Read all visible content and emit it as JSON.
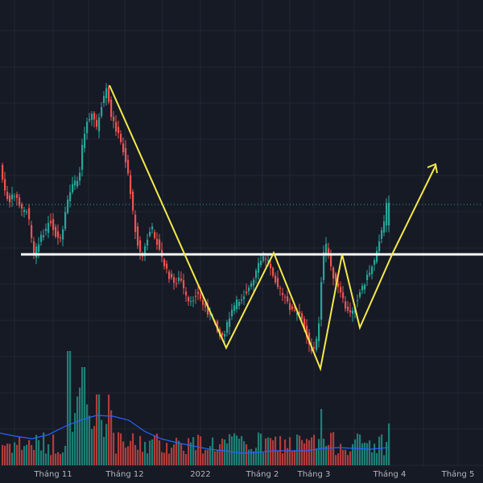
{
  "chart_data": {
    "type": "candlestick",
    "x_tick_labels": [
      "Tháng 11",
      "Tháng 12",
      "2022",
      "Tháng 2",
      "Tháng 3",
      "Tháng 4",
      "Tháng 5"
    ],
    "colors": {
      "background": "#161a25",
      "grid": "#232733",
      "up": "#26a69a",
      "down": "#ef5350",
      "volume_up": "#1d7f76",
      "volume_down": "#b23c3a",
      "volume_ma": "#2962ff",
      "support_line": "#ffffff",
      "pattern_line": "#f5e94a",
      "last_price_line": "#26a69a",
      "tick_text": "#b2b5be"
    },
    "grid": true
  }
}
